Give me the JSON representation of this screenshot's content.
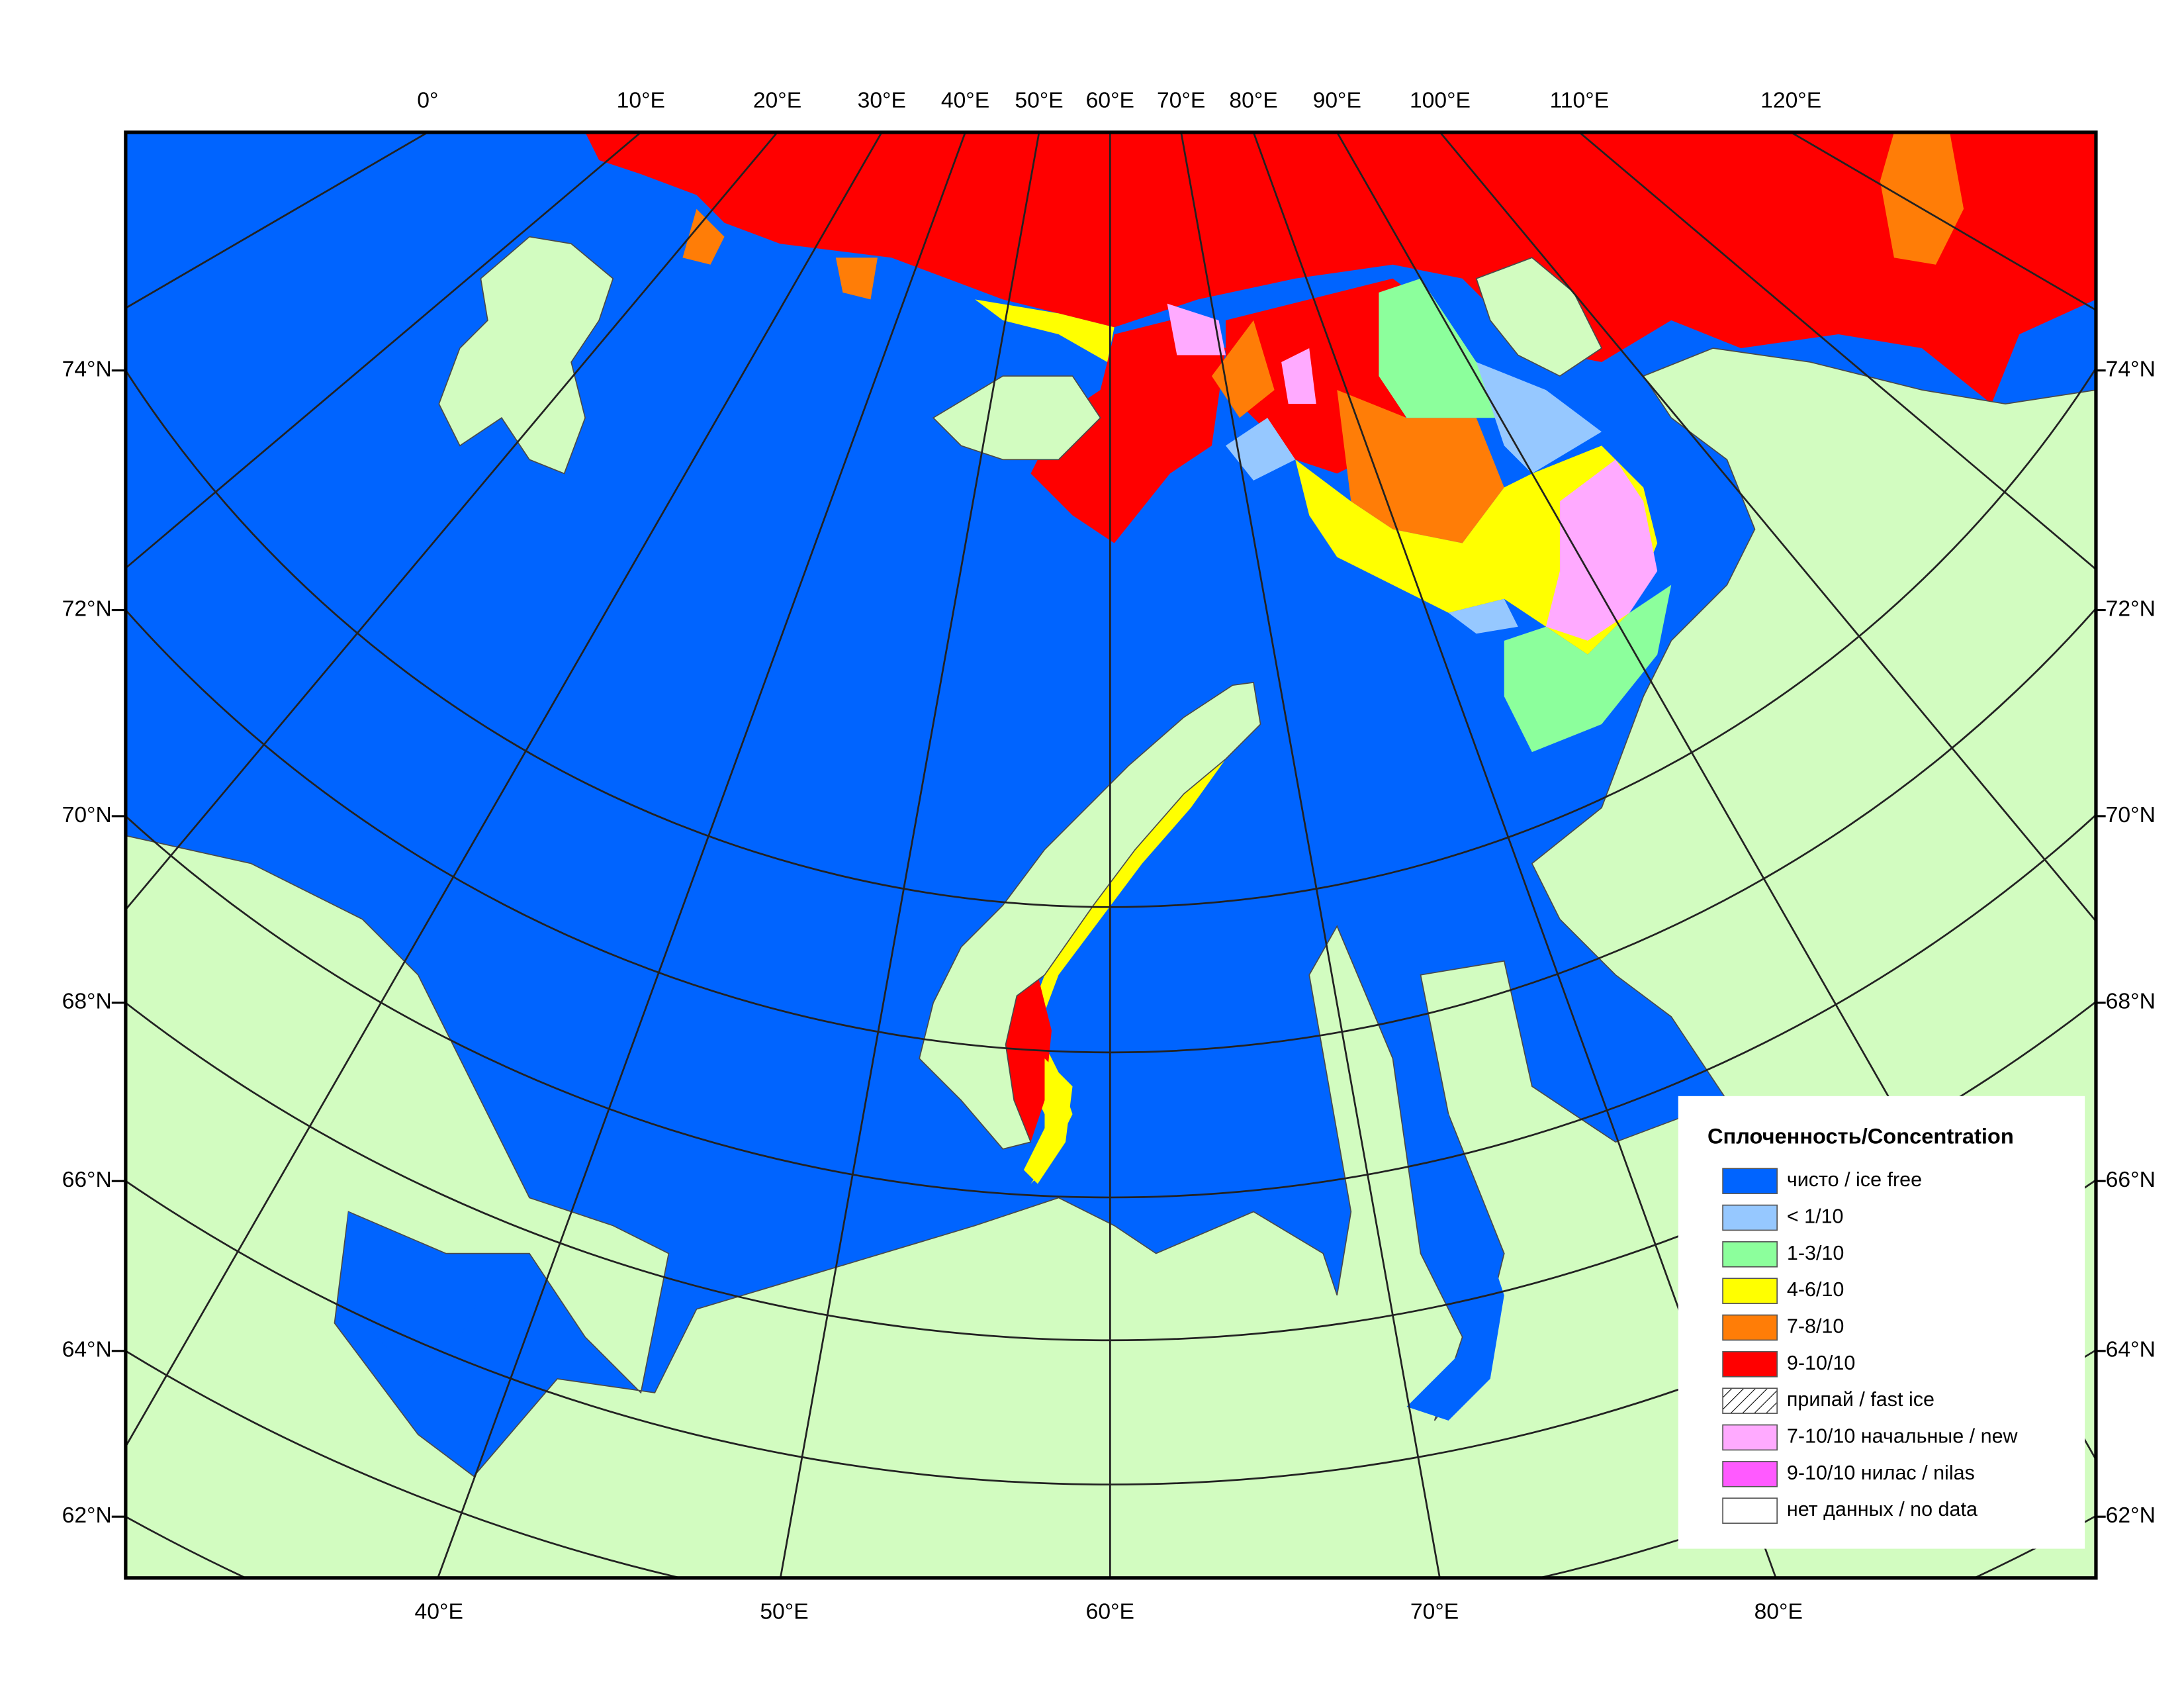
{
  "map": {
    "top_labels": [
      "0°",
      "10°E",
      "20°E",
      "30°E",
      "40°E",
      "50°E",
      "60°E",
      "70°E",
      "80°E",
      "90°E",
      "100°E",
      "110°E",
      "120°E"
    ],
    "bottom_labels": [
      "40°E",
      "50°E",
      "60°E",
      "70°E",
      "80°E"
    ],
    "left_labels": [
      "74°N",
      "72°N",
      "70°N",
      "68°N",
      "66°N",
      "64°N",
      "62°N"
    ],
    "right_labels": [
      "74°N",
      "72°N",
      "70°N",
      "68°N",
      "66°N",
      "64°N",
      "62°N"
    ],
    "legend": {
      "title": "Сплоченность/Concentration",
      "items": [
        {
          "label": "чисто / ice free",
          "color": "#0064ff"
        },
        {
          "label": "< 1/10",
          "color": "#96c8ff"
        },
        {
          "label": "1-3/10",
          "color": "#8cff9c"
        },
        {
          "label": "4-6/10",
          "color": "#ffff00"
        },
        {
          "label": "7-8/10",
          "color": "#ff7d07"
        },
        {
          "label": "9-10/10",
          "color": "#ff0000"
        },
        {
          "label": "припай / fast ice",
          "color": "#ffffff",
          "pattern": "hatch"
        },
        {
          "label": "7-10/10 начальные / new",
          "color": "#ffaaff"
        },
        {
          "label": "9-10/10 нилас / nilas",
          "color": "#ff5aff"
        },
        {
          "label": "нет данных / no data",
          "color": "#ffffff"
        }
      ]
    }
  }
}
